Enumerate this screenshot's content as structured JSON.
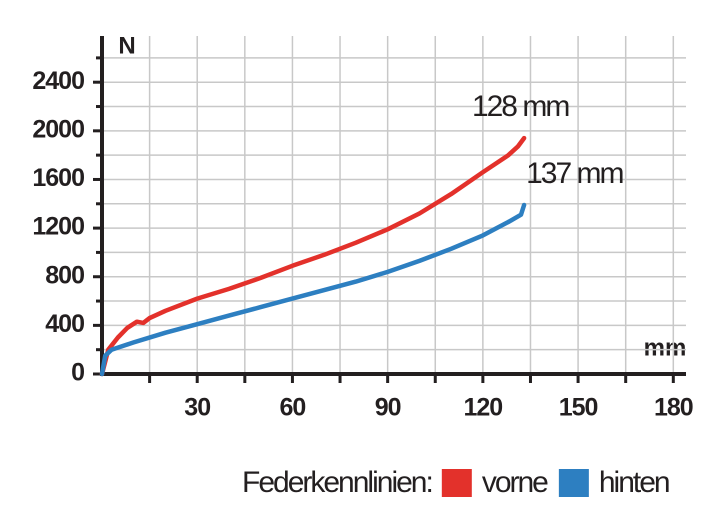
{
  "chart_data": {
    "type": "line",
    "y_label": "N",
    "x_label": "mm",
    "xlim": [
      0,
      184
    ],
    "ylim": [
      0,
      2780
    ],
    "xticks": [
      30,
      60,
      90,
      120,
      150,
      180
    ],
    "xminorticks": [
      15,
      45,
      75,
      105,
      135,
      165
    ],
    "yticks": [
      0,
      400,
      800,
      1200,
      1600,
      2000,
      2400
    ],
    "yminorticks": [
      200,
      600,
      1000,
      1400,
      1800,
      2200,
      2600
    ],
    "grid": true,
    "legend_title": "Federkennlinien:",
    "series": [
      {
        "name": "vorne",
        "color": "#e3312b",
        "x": [
          0,
          2,
          5,
          8,
          11,
          13,
          15,
          20,
          30,
          40,
          50,
          60,
          70,
          80,
          90,
          100,
          110,
          120,
          128,
          131,
          133
        ],
        "values": [
          0,
          200,
          300,
          380,
          430,
          420,
          460,
          520,
          620,
          700,
          790,
          890,
          980,
          1080,
          1190,
          1320,
          1480,
          1660,
          1800,
          1870,
          1940
        ],
        "end_label": "128 mm"
      },
      {
        "name": "hinten",
        "color": "#2d7fc1",
        "x": [
          0,
          1,
          3,
          10,
          20,
          30,
          40,
          50,
          60,
          70,
          80,
          90,
          100,
          110,
          120,
          128,
          132,
          133
        ],
        "values": [
          0,
          150,
          200,
          260,
          340,
          410,
          480,
          550,
          620,
          690,
          760,
          840,
          930,
          1030,
          1140,
          1250,
          1310,
          1390
        ],
        "end_label": "137 mm"
      }
    ]
  }
}
